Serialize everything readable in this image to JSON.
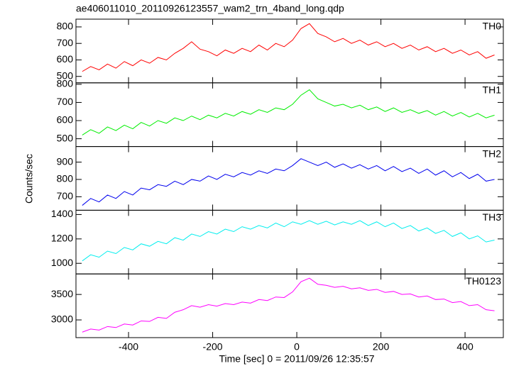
{
  "chart_data": {
    "type": "line",
    "title": "ae406011010_20110926123557_wam2_trn_4band_long.qdp",
    "xlabel": "Time [sec] 0 = 2011/09/26 12:35:57",
    "ylabel": "Counts/sec",
    "xlim": [
      -525,
      491
    ],
    "xticks": [
      -400,
      -200,
      0,
      200,
      400
    ],
    "x": [
      -510,
      -490,
      -470,
      -450,
      -430,
      -410,
      -390,
      -370,
      -350,
      -330,
      -310,
      -290,
      -270,
      -250,
      -230,
      -210,
      -190,
      -170,
      -150,
      -130,
      -110,
      -90,
      -70,
      -50,
      -30,
      -10,
      10,
      30,
      50,
      70,
      90,
      110,
      130,
      150,
      170,
      190,
      210,
      230,
      250,
      270,
      290,
      310,
      330,
      350,
      370,
      390,
      410,
      430,
      450,
      470
    ],
    "series": [
      {
        "name": "TH0",
        "color": "#ff0000",
        "ylim": [
          461,
          847
        ],
        "yticks": [
          500,
          600,
          700,
          800
        ],
        "values": [
          530,
          560,
          540,
          575,
          550,
          590,
          565,
          600,
          580,
          615,
          600,
          640,
          670,
          710,
          665,
          650,
          625,
          660,
          640,
          670,
          650,
          690,
          660,
          700,
          680,
          720,
          790,
          820,
          760,
          740,
          710,
          730,
          700,
          720,
          690,
          710,
          680,
          700,
          670,
          690,
          660,
          680,
          650,
          670,
          640,
          660,
          630,
          650,
          610,
          630
        ]
      },
      {
        "name": "TH1",
        "color": "#00ee00",
        "ylim": [
          457,
          808
        ],
        "yticks": [
          500,
          600,
          700,
          800
        ],
        "values": [
          520,
          550,
          530,
          565,
          545,
          575,
          555,
          590,
          570,
          600,
          585,
          615,
          600,
          625,
          605,
          630,
          615,
          640,
          625,
          650,
          635,
          660,
          645,
          670,
          660,
          690,
          740,
          770,
          720,
          700,
          680,
          690,
          670,
          685,
          660,
          675,
          650,
          670,
          645,
          660,
          640,
          655,
          630,
          650,
          625,
          645,
          620,
          640,
          615,
          630
        ]
      },
      {
        "name": "TH2",
        "color": "#0000ee",
        "ylim": [
          622,
          990
        ],
        "yticks": [
          700,
          800,
          900
        ],
        "values": [
          650,
          690,
          670,
          710,
          690,
          730,
          710,
          750,
          740,
          770,
          760,
          790,
          770,
          800,
          790,
          820,
          800,
          830,
          815,
          840,
          825,
          850,
          835,
          860,
          850,
          880,
          920,
          900,
          880,
          900,
          870,
          890,
          865,
          885,
          860,
          880,
          850,
          875,
          845,
          865,
          835,
          860,
          825,
          850,
          815,
          840,
          805,
          830,
          790,
          800
        ]
      },
      {
        "name": "TH3",
        "color": "#00eeee",
        "ylim": [
          913,
          1435
        ],
        "yticks": [
          1000,
          1200,
          1400
        ],
        "values": [
          1020,
          1070,
          1050,
          1100,
          1080,
          1130,
          1110,
          1160,
          1140,
          1180,
          1160,
          1210,
          1190,
          1240,
          1220,
          1260,
          1240,
          1280,
          1260,
          1300,
          1280,
          1310,
          1290,
          1330,
          1300,
          1340,
          1320,
          1350,
          1320,
          1345,
          1315,
          1340,
          1320,
          1350,
          1310,
          1340,
          1300,
          1330,
          1285,
          1310,
          1265,
          1290,
          1245,
          1270,
          1220,
          1250,
          1200,
          1225,
          1175,
          1190
        ]
      },
      {
        "name": "TH0123",
        "color": "#ff00ff",
        "ylim": [
          2652,
          3903
        ],
        "yticks": [
          3000,
          3500
        ],
        "values": [
          2760,
          2820,
          2800,
          2870,
          2850,
          2920,
          2900,
          2980,
          2970,
          3050,
          3030,
          3150,
          3200,
          3280,
          3250,
          3300,
          3270,
          3320,
          3300,
          3350,
          3330,
          3400,
          3380,
          3450,
          3440,
          3550,
          3750,
          3820,
          3700,
          3680,
          3640,
          3660,
          3610,
          3630,
          3580,
          3600,
          3540,
          3560,
          3500,
          3510,
          3450,
          3470,
          3400,
          3410,
          3340,
          3360,
          3280,
          3300,
          3200,
          3180
        ]
      }
    ]
  }
}
